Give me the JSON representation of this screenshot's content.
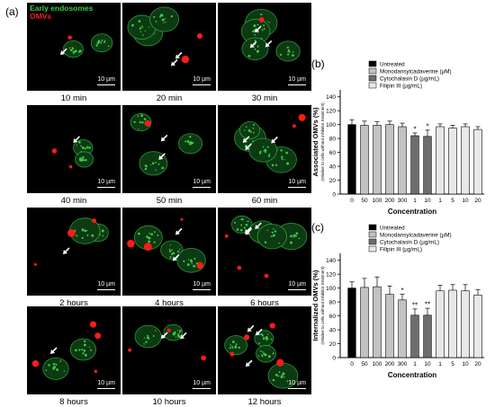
{
  "panel_a": {
    "letter": "(a)",
    "legend": {
      "early_endosomes": "Early endosomes",
      "omvs": "OMVs",
      "early_color": "#3ec94b",
      "omv_color": "#ff1a1a"
    },
    "scale_bar": "10 µm",
    "timepoints": [
      "10 min",
      "20 min",
      "30 min",
      "40 min",
      "50 min",
      "60 min",
      "2 hours",
      "4 hours",
      "6 hours",
      "8 hours",
      "10 hours",
      "12 hours"
    ]
  },
  "panel_b": {
    "letter": "(b)"
  },
  "panel_c": {
    "letter": "(c)"
  },
  "chart_data": [
    {
      "type": "bar",
      "ylabel": "Associated OMVs (%)",
      "ylabel_sub": "(relative to cells without inhibitor treatment)",
      "xlabel": "Concentration",
      "ylim": [
        0,
        150
      ],
      "yticks": [
        0,
        20,
        40,
        60,
        80,
        100,
        120,
        140
      ],
      "legend_position": "top-right",
      "legend": [
        {
          "name": "Untreated",
          "color": "#000000"
        },
        {
          "name": "Monodansylcadaverine (µM)",
          "color": "#c2c2c2"
        },
        {
          "name": "Cytochalasin D (µg/mL)",
          "color": "#6e6e6e"
        },
        {
          "name": "Filipin III (µg/mL)",
          "color": "#e8e8e8"
        }
      ],
      "categories": [
        "0",
        "50",
        "100",
        "200",
        "300",
        "1",
        "10",
        "1",
        "5",
        "10",
        "20"
      ],
      "groups": [
        0,
        1,
        1,
        1,
        1,
        2,
        2,
        3,
        3,
        3,
        3
      ],
      "values": [
        100,
        99,
        99,
        100,
        97,
        84,
        83,
        97,
        95,
        97,
        93
      ],
      "errors": [
        7,
        6,
        5,
        5,
        5,
        4,
        9,
        4,
        4,
        4,
        4
      ],
      "significance": [
        "",
        "",
        "",
        "",
        "",
        "*",
        "*",
        "",
        "",
        "",
        ""
      ]
    },
    {
      "type": "bar",
      "ylabel": "Internalized OMVs (%)",
      "ylabel_sub": "(relative to cells without inhibitor treatment)",
      "xlabel": "Concentration",
      "ylim": [
        0,
        150
      ],
      "yticks": [
        0,
        20,
        40,
        60,
        80,
        100,
        120,
        140
      ],
      "legend_position": "top-right",
      "legend": [
        {
          "name": "Untreated",
          "color": "#000000"
        },
        {
          "name": "Monodansylcadaverine (µM)",
          "color": "#c2c2c2"
        },
        {
          "name": "Cytochalasin D (µg/mL)",
          "color": "#6e6e6e"
        },
        {
          "name": "Filipin III (µg/mL)",
          "color": "#e8e8e8"
        }
      ],
      "categories": [
        "0",
        "50",
        "100",
        "200",
        "300",
        "1",
        "10",
        "1",
        "5",
        "10",
        "20"
      ],
      "groups": [
        0,
        1,
        1,
        1,
        1,
        2,
        2,
        3,
        3,
        3,
        3
      ],
      "values": [
        100,
        101,
        102,
        91,
        83,
        61,
        61,
        96,
        97,
        96,
        90
      ],
      "errors": [
        9,
        13,
        14,
        12,
        8,
        9,
        10,
        8,
        8,
        9,
        8
      ],
      "significance": [
        "",
        "",
        "",
        "",
        "*",
        "**",
        "**",
        "",
        "",
        "",
        ""
      ]
    }
  ]
}
